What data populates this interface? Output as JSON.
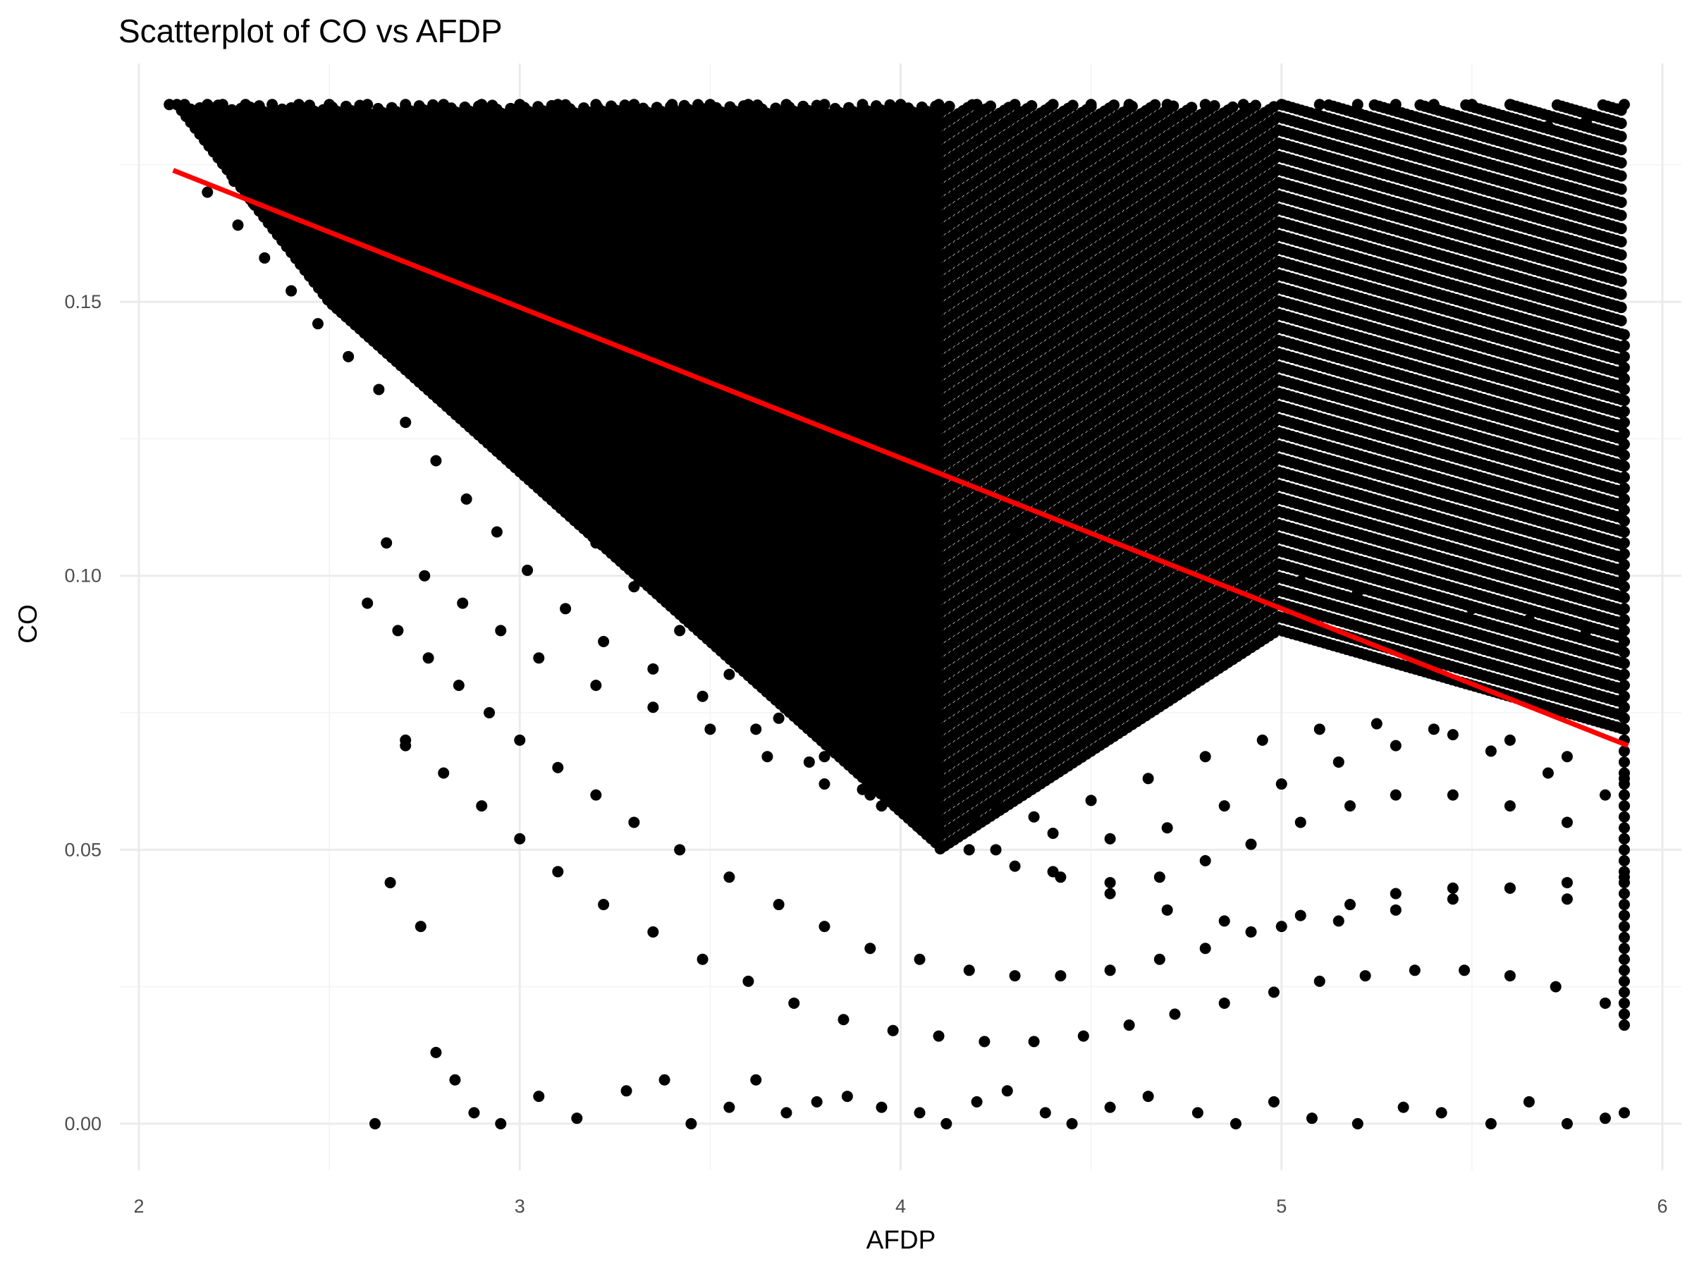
{
  "chart_data": {
    "type": "scatter",
    "title": "Scatterplot of CO vs AFDP",
    "xlabel": "AFDP",
    "ylabel": "CO",
    "xlim": [
      1.95,
      6.05
    ],
    "ylim": [
      -0.0085,
      0.1935
    ],
    "x_ticks": [
      2,
      3,
      4,
      5,
      6
    ],
    "x_tick_labels": [
      "2",
      "3",
      "4",
      "5",
      "6"
    ],
    "y_ticks": [
      0.0,
      0.05,
      0.1,
      0.15
    ],
    "y_tick_labels": [
      "0.00",
      "0.05",
      "0.10",
      "0.15"
    ],
    "grid": true,
    "point_color": "#000000",
    "trend_color": "#ff0000",
    "trend_line": {
      "x": [
        2.09,
        5.91
      ],
      "y": [
        0.174,
        0.069
      ]
    },
    "points_x": [
      2.08,
      2.12,
      2.18,
      2.22,
      2.28,
      2.35,
      2.42,
      2.5,
      2.6,
      2.7,
      2.8,
      2.9,
      3.0,
      3.1,
      3.2,
      3.3,
      3.4,
      3.5,
      3.6,
      3.7,
      3.8,
      3.9,
      4.0,
      4.1,
      4.2,
      4.3,
      4.4,
      4.5,
      4.6,
      4.7,
      4.8,
      4.9,
      5.0,
      5.1,
      5.2,
      5.3,
      5.4,
      5.5,
      5.6,
      5.7,
      5.8,
      5.9,
      2.2,
      2.25,
      2.3,
      2.35,
      2.42,
      2.48,
      2.55,
      2.62,
      2.68,
      2.74,
      2.8,
      2.87,
      2.95,
      3.05,
      3.15,
      3.28,
      3.4,
      3.55,
      3.7,
      3.85,
      4.0,
      4.15,
      4.3,
      4.45,
      4.6,
      4.75,
      4.9,
      5.05,
      5.2,
      5.35,
      5.5,
      5.65,
      5.8,
      5.9,
      2.18,
      2.26,
      2.33,
      2.4,
      2.47,
      2.55,
      2.63,
      2.7,
      2.78,
      2.86,
      2.94,
      3.02,
      3.12,
      3.22,
      3.35,
      3.48,
      3.62,
      3.76,
      3.9,
      4.05,
      4.2,
      4.35,
      4.5,
      4.65,
      4.8,
      4.95,
      5.1,
      5.25,
      5.4,
      5.55,
      5.7,
      5.85,
      5.9,
      2.3,
      2.38,
      2.45,
      2.52,
      2.6,
      2.68,
      2.76,
      2.84,
      2.93,
      3.02,
      3.11,
      3.2,
      3.3,
      3.42,
      3.55,
      3.68,
      3.8,
      3.95,
      4.1,
      4.25,
      4.4,
      4.55,
      4.7,
      4.85,
      5.0,
      5.15,
      5.3,
      5.45,
      5.6,
      5.75,
      5.9,
      2.45,
      2.55,
      2.63,
      2.72,
      2.8,
      2.9,
      3.0,
      3.1,
      3.2,
      3.3,
      3.42,
      3.55,
      3.68,
      3.8,
      3.92,
      4.05,
      4.18,
      4.3,
      4.42,
      4.55,
      4.68,
      4.8,
      4.92,
      5.05,
      5.18,
      5.3,
      5.45,
      5.6,
      5.75,
      5.9,
      2.6,
      2.68,
      2.76,
      2.84,
      2.92,
      3.0,
      3.1,
      3.2,
      3.3,
      3.42,
      3.55,
      3.68,
      3.8,
      3.92,
      4.05,
      4.18,
      4.3,
      4.42,
      4.55,
      4.68,
      4.8,
      4.92,
      5.05,
      5.18,
      5.3,
      5.45,
      5.6,
      5.75,
      5.9,
      2.7,
      2.8,
      2.9,
      3.0,
      3.1,
      3.22,
      3.35,
      3.48,
      3.6,
      3.72,
      3.85,
      3.98,
      4.1,
      4.22,
      4.35,
      4.48,
      4.6,
      4.72,
      4.85,
      4.98,
      5.1,
      5.22,
      5.35,
      5.48,
      5.6,
      5.72,
      5.85,
      5.9,
      2.62,
      2.66,
      2.7,
      2.74,
      2.78,
      2.83,
      2.88,
      2.95,
      3.05,
      3.15,
      3.28,
      3.38,
      3.45,
      3.55,
      3.62,
      3.7,
      3.78,
      3.86,
      3.95,
      4.05,
      4.12,
      4.2,
      4.28,
      4.38,
      4.45,
      4.55,
      4.65,
      4.78,
      4.88,
      4.98,
      5.08,
      5.2,
      5.32,
      5.42,
      5.55,
      5.65,
      5.75,
      5.85,
      5.9,
      2.65,
      2.75,
      2.85,
      2.95,
      3.05,
      3.2,
      3.35,
      3.5,
      3.65,
      3.8,
      3.95,
      4.1,
      4.25,
      4.4,
      4.55,
      4.7,
      4.85,
      5.0,
      5.15,
      5.3,
      5.45,
      5.6,
      5.75,
      5.9
    ],
    "points_y": [
      0.186,
      0.186,
      0.186,
      0.186,
      0.186,
      0.186,
      0.186,
      0.186,
      0.186,
      0.186,
      0.186,
      0.186,
      0.186,
      0.186,
      0.186,
      0.186,
      0.186,
      0.186,
      0.186,
      0.186,
      0.186,
      0.186,
      0.186,
      0.186,
      0.186,
      0.186,
      0.186,
      0.186,
      0.186,
      0.186,
      0.186,
      0.186,
      0.186,
      0.186,
      0.186,
      0.186,
      0.186,
      0.186,
      0.186,
      0.182,
      0.183,
      0.186,
      0.178,
      0.172,
      0.168,
      0.165,
      0.161,
      0.158,
      0.152,
      0.148,
      0.144,
      0.141,
      0.138,
      0.135,
      0.132,
      0.128,
      0.125,
      0.122,
      0.12,
      0.118,
      0.115,
      0.113,
      0.112,
      0.11,
      0.108,
      0.106,
      0.104,
      0.102,
      0.1,
      0.099,
      0.097,
      0.095,
      0.094,
      0.092,
      0.09,
      0.088,
      0.17,
      0.164,
      0.158,
      0.152,
      0.146,
      0.14,
      0.134,
      0.128,
      0.121,
      0.114,
      0.108,
      0.101,
      0.094,
      0.088,
      0.083,
      0.078,
      0.072,
      0.066,
      0.061,
      0.057,
      0.055,
      0.056,
      0.059,
      0.063,
      0.067,
      0.07,
      0.072,
      0.073,
      0.072,
      0.068,
      0.064,
      0.06,
      0.058,
      0.176,
      0.172,
      0.167,
      0.162,
      0.157,
      0.151,
      0.145,
      0.139,
      0.133,
      0.127,
      0.12,
      0.113,
      0.106,
      0.099,
      0.092,
      0.085,
      0.078,
      0.071,
      0.064,
      0.058,
      0.053,
      0.052,
      0.054,
      0.058,
      0.062,
      0.066,
      0.069,
      0.071,
      0.07,
      0.067,
      0.063,
      0.16,
      0.153,
      0.147,
      0.14,
      0.134,
      0.127,
      0.12,
      0.113,
      0.106,
      0.098,
      0.09,
      0.082,
      0.074,
      0.067,
      0.06,
      0.054,
      0.05,
      0.047,
      0.045,
      0.044,
      0.045,
      0.048,
      0.051,
      0.055,
      0.058,
      0.06,
      0.06,
      0.058,
      0.055,
      0.052,
      0.095,
      0.09,
      0.085,
      0.08,
      0.075,
      0.07,
      0.065,
      0.06,
      0.055,
      0.05,
      0.045,
      0.04,
      0.036,
      0.032,
      0.03,
      0.028,
      0.027,
      0.027,
      0.028,
      0.03,
      0.032,
      0.035,
      0.038,
      0.04,
      0.042,
      0.043,
      0.043,
      0.041,
      0.038,
      0.07,
      0.064,
      0.058,
      0.052,
      0.046,
      0.04,
      0.035,
      0.03,
      0.026,
      0.022,
      0.019,
      0.017,
      0.016,
      0.015,
      0.015,
      0.016,
      0.018,
      0.02,
      0.022,
      0.024,
      0.026,
      0.027,
      0.028,
      0.028,
      0.027,
      0.025,
      0.022,
      0.02,
      0.0,
      0.044,
      0.069,
      0.036,
      0.013,
      0.008,
      0.002,
      0.0,
      0.005,
      0.001,
      0.006,
      0.008,
      0.0,
      0.003,
      0.008,
      0.002,
      0.004,
      0.005,
      0.003,
      0.002,
      0.0,
      0.004,
      0.006,
      0.002,
      0.0,
      0.003,
      0.005,
      0.002,
      0.0,
      0.004,
      0.001,
      0.0,
      0.003,
      0.002,
      0.0,
      0.004,
      0.0,
      0.001,
      0.002,
      0.106,
      0.1,
      0.095,
      0.09,
      0.085,
      0.08,
      0.076,
      0.072,
      0.067,
      0.062,
      0.058,
      0.054,
      0.05,
      0.046,
      0.042,
      0.039,
      0.037,
      0.036,
      0.037,
      0.039,
      0.041,
      0.043,
      0.044,
      0.045
    ]
  }
}
